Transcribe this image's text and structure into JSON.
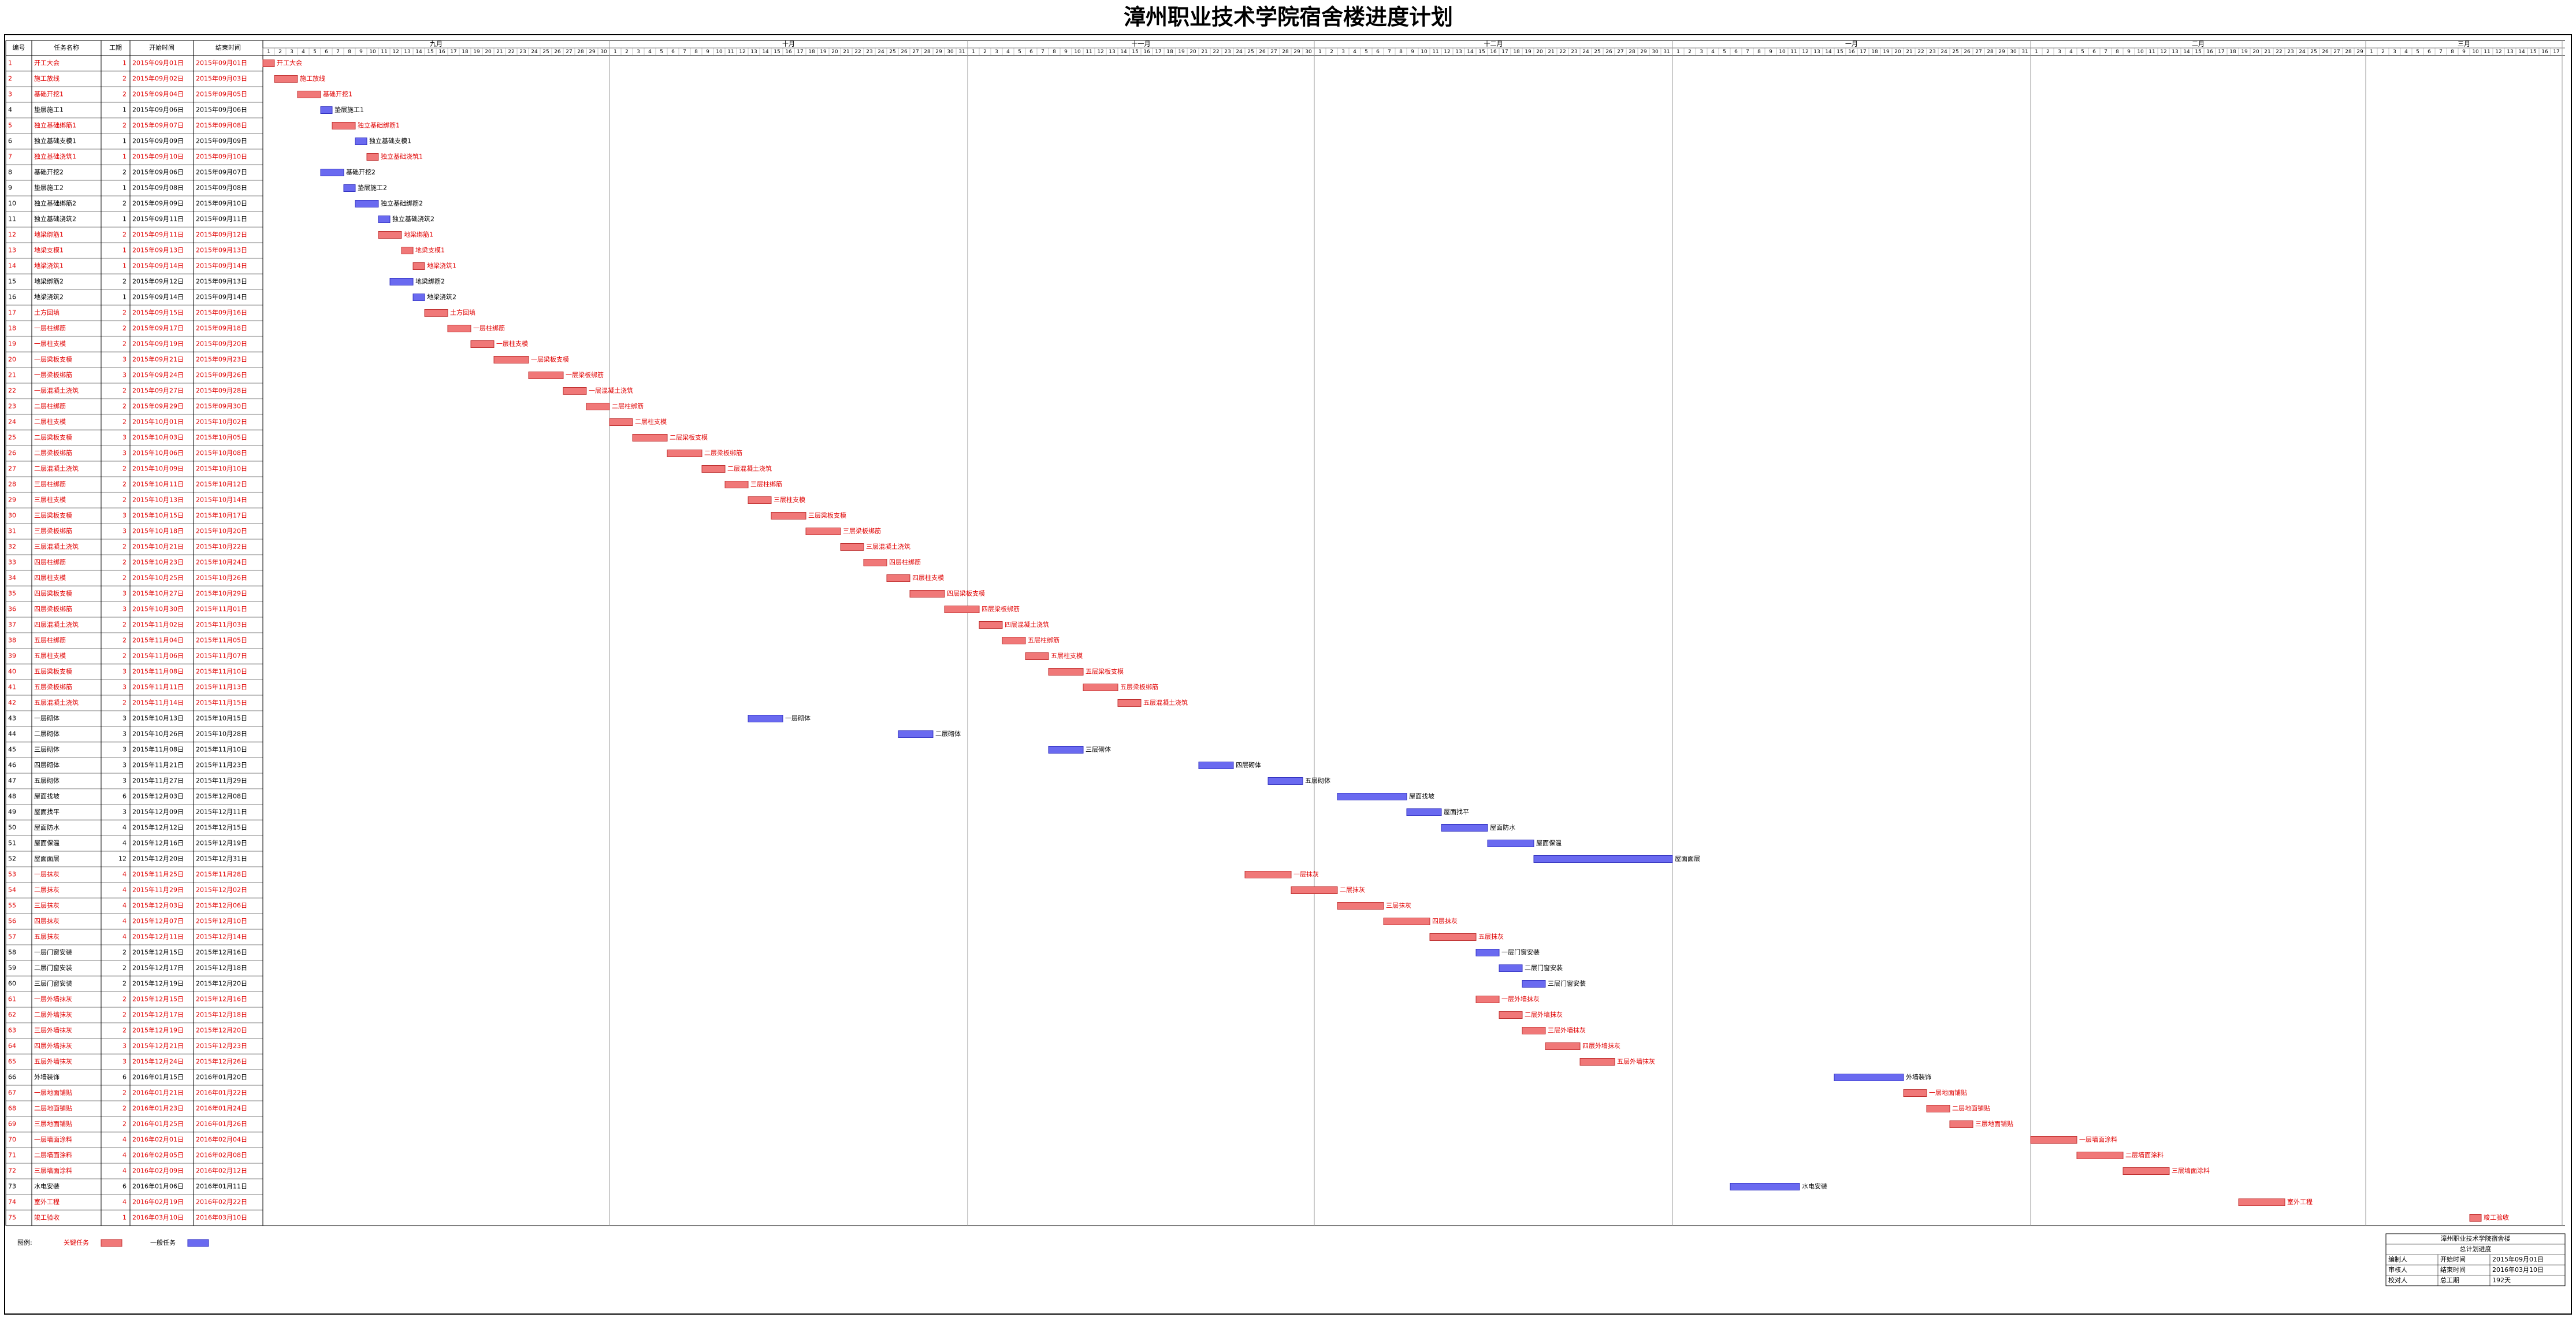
{
  "chart_data": {
    "type": "gantt",
    "title": "漳州职业技术学院宿舍楼进度计划",
    "columns": [
      "编号",
      "任务名称",
      "工期",
      "开始时间",
      "结束时间"
    ],
    "months": [
      {
        "label": "九月",
        "days": [
          1,
          2,
          3,
          4,
          5,
          6,
          7,
          8,
          9,
          10,
          11,
          12,
          13,
          14,
          15,
          16,
          17,
          18,
          19,
          20,
          21,
          22,
          23,
          24,
          25,
          26,
          27,
          28,
          29,
          30
        ]
      },
      {
        "label": "十月",
        "days": [
          1,
          2,
          3,
          4,
          5,
          6,
          7,
          8,
          9,
          10,
          11,
          12,
          13,
          14,
          15,
          16,
          17,
          18,
          19,
          20,
          21,
          22,
          23,
          24,
          25,
          26,
          27,
          28,
          29,
          30,
          31
        ]
      },
      {
        "label": "十一月",
        "days": [
          1,
          2,
          3,
          4,
          5,
          6,
          7,
          8,
          9,
          10,
          11,
          12,
          13,
          14,
          15,
          16,
          17,
          18,
          19,
          20,
          21,
          22,
          23,
          24,
          25,
          26,
          27,
          28,
          29,
          30
        ]
      },
      {
        "label": "十二月",
        "days": [
          1,
          2,
          3,
          4,
          5,
          6,
          7,
          8,
          9,
          10,
          11,
          12,
          13,
          14,
          15,
          16,
          17,
          18,
          19,
          20,
          21,
          22,
          23,
          24,
          25,
          26,
          27,
          28,
          29,
          30,
          31
        ]
      },
      {
        "label": "一月",
        "days": [
          1,
          2,
          3,
          4,
          5,
          6,
          7,
          8,
          9,
          10,
          11,
          12,
          13,
          14,
          15,
          16,
          17,
          18,
          19,
          20,
          21,
          22,
          23,
          24,
          25,
          26,
          27,
          28,
          29,
          30,
          31
        ]
      },
      {
        "label": "二月",
        "days": [
          1,
          2,
          3,
          4,
          5,
          6,
          7,
          8,
          9,
          10,
          11,
          12,
          13,
          14,
          15,
          16,
          17,
          18,
          19,
          20,
          21,
          22,
          23,
          24,
          25,
          26,
          27,
          28,
          29
        ]
      },
      {
        "label": "三月",
        "days": [
          1,
          2,
          3,
          4,
          5,
          6,
          7,
          8,
          9,
          10,
          11,
          12,
          13,
          14,
          15,
          16,
          17
        ]
      }
    ],
    "critical_color": "#f07878",
    "normal_color": "#6a6af0",
    "tasks": [
      {
        "id": "1",
        "name": "开工大会",
        "duration": 1,
        "start": "2015年09月01日",
        "end": "2015年09月01日",
        "critical": true
      },
      {
        "id": "2",
        "name": "施工放线",
        "duration": 2,
        "start": "2015年09月02日",
        "end": "2015年09月03日",
        "critical": true
      },
      {
        "id": "3",
        "name": "基础开挖1",
        "duration": 2,
        "start": "2015年09月04日",
        "end": "2015年09月05日",
        "critical": true
      },
      {
        "id": "4",
        "name": "垫层施工1",
        "duration": 1,
        "start": "2015年09月06日",
        "end": "2015年09月06日",
        "critical": false
      },
      {
        "id": "5",
        "name": "独立基础绑筋1",
        "duration": 2,
        "start": "2015年09月07日",
        "end": "2015年09月08日",
        "critical": true
      },
      {
        "id": "6",
        "name": "独立基础支模1",
        "duration": 1,
        "start": "2015年09月09日",
        "end": "2015年09月09日",
        "critical": false
      },
      {
        "id": "7",
        "name": "独立基础浇筑1",
        "duration": 1,
        "start": "2015年09月10日",
        "end": "2015年09月10日",
        "critical": true
      },
      {
        "id": "8",
        "name": "基础开挖2",
        "duration": 2,
        "start": "2015年09月06日",
        "end": "2015年09月07日",
        "critical": false
      },
      {
        "id": "9",
        "name": "垫层施工2",
        "duration": 1,
        "start": "2015年09月08日",
        "end": "2015年09月08日",
        "critical": false
      },
      {
        "id": "10",
        "name": "独立基础绑筋2",
        "duration": 2,
        "start": "2015年09月09日",
        "end": "2015年09月10日",
        "critical": false
      },
      {
        "id": "11",
        "name": "独立基础浇筑2",
        "duration": 1,
        "start": "2015年09月11日",
        "end": "2015年09月11日",
        "critical": false
      },
      {
        "id": "12",
        "name": "地梁绑筋1",
        "duration": 2,
        "start": "2015年09月11日",
        "end": "2015年09月12日",
        "critical": true
      },
      {
        "id": "13",
        "name": "地梁支模1",
        "duration": 1,
        "start": "2015年09月13日",
        "end": "2015年09月13日",
        "critical": true
      },
      {
        "id": "14",
        "name": "地梁浇筑1",
        "duration": 1,
        "start": "2015年09月14日",
        "end": "2015年09月14日",
        "critical": true
      },
      {
        "id": "15",
        "name": "地梁绑筋2",
        "duration": 2,
        "start": "2015年09月12日",
        "end": "2015年09月13日",
        "critical": false
      },
      {
        "id": "16",
        "name": "地梁浇筑2",
        "duration": 1,
        "start": "2015年09月14日",
        "end": "2015年09月14日",
        "critical": false
      },
      {
        "id": "17",
        "name": "土方回填",
        "duration": 2,
        "start": "2015年09月15日",
        "end": "2015年09月16日",
        "critical": true
      },
      {
        "id": "18",
        "name": "一层柱绑筋",
        "duration": 2,
        "start": "2015年09月17日",
        "end": "2015年09月18日",
        "critical": true
      },
      {
        "id": "19",
        "name": "一层柱支模",
        "duration": 2,
        "start": "2015年09月19日",
        "end": "2015年09月20日",
        "critical": true
      },
      {
        "id": "20",
        "name": "一层梁板支模",
        "duration": 3,
        "start": "2015年09月21日",
        "end": "2015年09月23日",
        "critical": true
      },
      {
        "id": "21",
        "name": "一层梁板绑筋",
        "duration": 3,
        "start": "2015年09月24日",
        "end": "2015年09月26日",
        "critical": true
      },
      {
        "id": "22",
        "name": "一层混凝土浇筑",
        "duration": 2,
        "start": "2015年09月27日",
        "end": "2015年09月28日",
        "critical": true
      },
      {
        "id": "23",
        "name": "二层柱绑筋",
        "duration": 2,
        "start": "2015年09月29日",
        "end": "2015年09月30日",
        "critical": true
      },
      {
        "id": "24",
        "name": "二层柱支模",
        "duration": 2,
        "start": "2015年10月01日",
        "end": "2015年10月02日",
        "critical": true
      },
      {
        "id": "25",
        "name": "二层梁板支模",
        "duration": 3,
        "start": "2015年10月03日",
        "end": "2015年10月05日",
        "critical": true
      },
      {
        "id": "26",
        "name": "二层梁板绑筋",
        "duration": 3,
        "start": "2015年10月06日",
        "end": "2015年10月08日",
        "critical": true
      },
      {
        "id": "27",
        "name": "二层混凝土浇筑",
        "duration": 2,
        "start": "2015年10月09日",
        "end": "2015年10月10日",
        "critical": true
      },
      {
        "id": "28",
        "name": "三层柱绑筋",
        "duration": 2,
        "start": "2015年10月11日",
        "end": "2015年10月12日",
        "critical": true
      },
      {
        "id": "29",
        "name": "三层柱支模",
        "duration": 2,
        "start": "2015年10月13日",
        "end": "2015年10月14日",
        "critical": true
      },
      {
        "id": "30",
        "name": "三层梁板支模",
        "duration": 3,
        "start": "2015年10月15日",
        "end": "2015年10月17日",
        "critical": true
      },
      {
        "id": "31",
        "name": "三层梁板绑筋",
        "duration": 3,
        "start": "2015年10月18日",
        "end": "2015年10月20日",
        "critical": true
      },
      {
        "id": "32",
        "name": "三层混凝土浇筑",
        "duration": 2,
        "start": "2015年10月21日",
        "end": "2015年10月22日",
        "critical": true
      },
      {
        "id": "33",
        "name": "四层柱绑筋",
        "duration": 2,
        "start": "2015年10月23日",
        "end": "2015年10月24日",
        "critical": true
      },
      {
        "id": "34",
        "name": "四层柱支模",
        "duration": 2,
        "start": "2015年10月25日",
        "end": "2015年10月26日",
        "critical": true
      },
      {
        "id": "35",
        "name": "四层梁板支模",
        "duration": 3,
        "start": "2015年10月27日",
        "end": "2015年10月29日",
        "critical": true
      },
      {
        "id": "36",
        "name": "四层梁板绑筋",
        "duration": 3,
        "start": "2015年10月30日",
        "end": "2015年11月01日",
        "critical": true
      },
      {
        "id": "37",
        "name": "四层混凝土浇筑",
        "duration": 2,
        "start": "2015年11月02日",
        "end": "2015年11月03日",
        "critical": true
      },
      {
        "id": "38",
        "name": "五层柱绑筋",
        "duration": 2,
        "start": "2015年11月04日",
        "end": "2015年11月05日",
        "critical": true
      },
      {
        "id": "39",
        "name": "五层柱支模",
        "duration": 2,
        "start": "2015年11月06日",
        "end": "2015年11月07日",
        "critical": true
      },
      {
        "id": "40",
        "name": "五层梁板支模",
        "duration": 3,
        "start": "2015年11月08日",
        "end": "2015年11月10日",
        "critical": true
      },
      {
        "id": "41",
        "name": "五层梁板绑筋",
        "duration": 3,
        "start": "2015年11月11日",
        "end": "2015年11月13日",
        "critical": true
      },
      {
        "id": "42",
        "name": "五层混凝土浇筑",
        "duration": 2,
        "start": "2015年11月14日",
        "end": "2015年11月15日",
        "critical": true
      },
      {
        "id": "43",
        "name": "一层砌体",
        "duration": 3,
        "start": "2015年10月13日",
        "end": "2015年10月15日",
        "critical": false
      },
      {
        "id": "44",
        "name": "二层砌体",
        "duration": 3,
        "start": "2015年10月26日",
        "end": "2015年10月28日",
        "critical": false
      },
      {
        "id": "45",
        "name": "三层砌体",
        "duration": 3,
        "start": "2015年11月08日",
        "end": "2015年11月10日",
        "critical": false
      },
      {
        "id": "46",
        "name": "四层砌体",
        "duration": 3,
        "start": "2015年11月21日",
        "end": "2015年11月23日",
        "critical": false
      },
      {
        "id": "47",
        "name": "五层砌体",
        "duration": 3,
        "start": "2015年11月27日",
        "end": "2015年11月29日",
        "critical": false
      },
      {
        "id": "48",
        "name": "屋面找坡",
        "duration": 6,
        "start": "2015年12月03日",
        "end": "2015年12月08日",
        "critical": false
      },
      {
        "id": "49",
        "name": "屋面找平",
        "duration": 3,
        "start": "2015年12月09日",
        "end": "2015年12月11日",
        "critical": false
      },
      {
        "id": "50",
        "name": "屋面防水",
        "duration": 4,
        "start": "2015年12月12日",
        "end": "2015年12月15日",
        "critical": false
      },
      {
        "id": "51",
        "name": "屋面保温",
        "duration": 4,
        "start": "2015年12月16日",
        "end": "2015年12月19日",
        "critical": false
      },
      {
        "id": "52",
        "name": "屋面面层",
        "duration": 12,
        "start": "2015年12月20日",
        "end": "2015年12月31日",
        "critical": false
      },
      {
        "id": "53",
        "name": "一层抹灰",
        "duration": 4,
        "start": "2015年11月25日",
        "end": "2015年11月28日",
        "critical": true
      },
      {
        "id": "54",
        "name": "二层抹灰",
        "duration": 4,
        "start": "2015年11月29日",
        "end": "2015年12月02日",
        "critical": true
      },
      {
        "id": "55",
        "name": "三层抹灰",
        "duration": 4,
        "start": "2015年12月03日",
        "end": "2015年12月06日",
        "critical": true
      },
      {
        "id": "56",
        "name": "四层抹灰",
        "duration": 4,
        "start": "2015年12月07日",
        "end": "2015年12月10日",
        "critical": true
      },
      {
        "id": "57",
        "name": "五层抹灰",
        "duration": 4,
        "start": "2015年12月11日",
        "end": "2015年12月14日",
        "critical": true
      },
      {
        "id": "58",
        "name": "一层门窗安装",
        "duration": 2,
        "start": "2015年12月15日",
        "end": "2015年12月16日",
        "critical": false
      },
      {
        "id": "59",
        "name": "二层门窗安装",
        "duration": 2,
        "start": "2015年12月17日",
        "end": "2015年12月18日",
        "critical": false
      },
      {
        "id": "60",
        "name": "三层门窗安装",
        "duration": 2,
        "start": "2015年12月19日",
        "end": "2015年12月20日",
        "critical": false
      },
      {
        "id": "61",
        "name": "一层外墙抹灰",
        "duration": 2,
        "start": "2015年12月15日",
        "end": "2015年12月16日",
        "critical": true
      },
      {
        "id": "62",
        "name": "二层外墙抹灰",
        "duration": 2,
        "start": "2015年12月17日",
        "end": "2015年12月18日",
        "critical": true
      },
      {
        "id": "63",
        "name": "三层外墙抹灰",
        "duration": 2,
        "start": "2015年12月19日",
        "end": "2015年12月20日",
        "critical": true
      },
      {
        "id": "64",
        "name": "四层外墙抹灰",
        "duration": 3,
        "start": "2015年12月21日",
        "end": "2015年12月23日",
        "critical": true
      },
      {
        "id": "65",
        "name": "五层外墙抹灰",
        "duration": 3,
        "start": "2015年12月24日",
        "end": "2015年12月26日",
        "critical": true
      },
      {
        "id": "66",
        "name": "外墙装饰",
        "duration": 6,
        "start": "2016年01月15日",
        "end": "2016年01月20日",
        "critical": false
      },
      {
        "id": "67",
        "name": "一层地面铺贴",
        "duration": 2,
        "start": "2016年01月21日",
        "end": "2016年01月22日",
        "critical": true
      },
      {
        "id": "68",
        "name": "二层地面铺贴",
        "duration": 2,
        "start": "2016年01月23日",
        "end": "2016年01月24日",
        "critical": true
      },
      {
        "id": "69",
        "name": "三层地面铺贴",
        "duration": 2,
        "start": "2016年01月25日",
        "end": "2016年01月26日",
        "critical": true
      },
      {
        "id": "70",
        "name": "一层墙面涂料",
        "duration": 4,
        "start": "2016年02月01日",
        "end": "2016年02月04日",
        "critical": true
      },
      {
        "id": "71",
        "name": "二层墙面涂料",
        "duration": 4,
        "start": "2016年02月05日",
        "end": "2016年02月08日",
        "critical": true
      },
      {
        "id": "72",
        "name": "三层墙面涂料",
        "duration": 4,
        "start": "2016年02月09日",
        "end": "2016年02月12日",
        "critical": true
      },
      {
        "id": "73",
        "name": "水电安装",
        "duration": 6,
        "start": "2016年01月06日",
        "end": "2016年01月11日",
        "critical": false
      },
      {
        "id": "74",
        "name": "室外工程",
        "duration": 4,
        "start": "2016年02月19日",
        "end": "2016年02月22日",
        "critical": true
      },
      {
        "id": "75",
        "name": "竣工验收",
        "duration": 1,
        "start": "2016年03月10日",
        "end": "2016年03月10日",
        "critical": true
      }
    ],
    "legend": {
      "title": "图例:",
      "critical": "关键任务",
      "normal": "一般任务"
    },
    "info": {
      "title": "漳州职业技术学院宿舍楼",
      "subtitle": "总计划进度",
      "rows": [
        [
          "编制人",
          "开始时间",
          "2015年09月01日"
        ],
        [
          "审核人",
          "结束时间",
          "2016年03月10日"
        ],
        [
          "校对人",
          "总工期",
          "192天"
        ]
      ]
    }
  }
}
